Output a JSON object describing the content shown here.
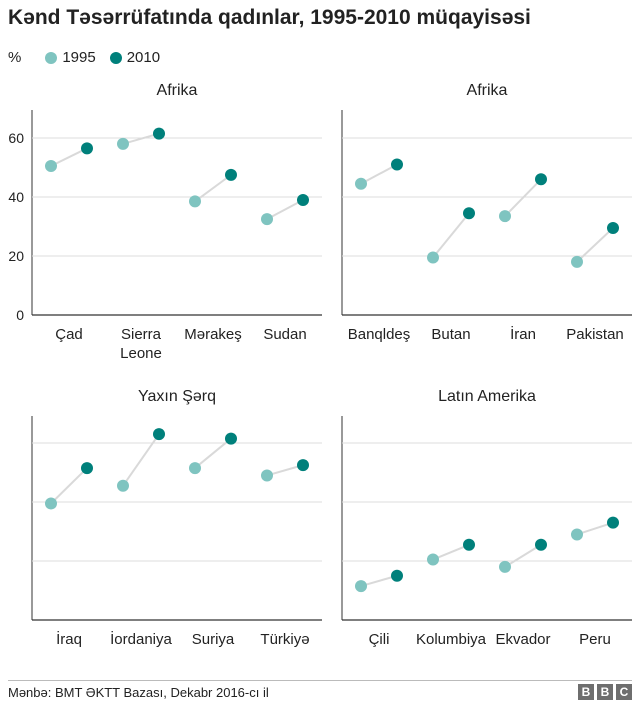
{
  "title": "Kənd Təsərrüfatında qadınlar, 1995-2010 müqayisəsi",
  "legend": {
    "unit": "%",
    "items": [
      {
        "label": "1995",
        "color": "#7fc4c0"
      },
      {
        "label": "2010",
        "color": "#00807b"
      }
    ]
  },
  "footer": {
    "source": "Mənbə: BMT ƏKTT  Bazası, Dekabr 2016-cı il",
    "logo_letters": [
      "B",
      "B",
      "C"
    ]
  },
  "colors": {
    "color_1995": "#7fc4c0",
    "color_2010": "#00807b",
    "connector": "#d9d9d9",
    "gridline": "#dddddd",
    "axis": "#333333"
  },
  "chart_data": [
    {
      "type": "scatter",
      "title": "Afrika",
      "ylim": [
        0,
        70
      ],
      "yticks": [
        0,
        20,
        40,
        60
      ],
      "show_y_tick_labels": true,
      "series": [
        {
          "name": "1995"
        },
        {
          "name": "2010"
        }
      ],
      "categories": [
        {
          "label": [
            "Çad"
          ],
          "v1995": 50.5,
          "v2010": 56.5
        },
        {
          "label": [
            "Sierra",
            "Leone"
          ],
          "v1995": 58,
          "v2010": 61.5
        },
        {
          "label": [
            "Mərakeş"
          ],
          "v1995": 38.5,
          "v2010": 47.5
        },
        {
          "label": [
            "Sudan"
          ],
          "v1995": 32.5,
          "v2010": 39
        }
      ]
    },
    {
      "type": "scatter",
      "title": "Afrika",
      "ylim": [
        0,
        70
      ],
      "yticks": [
        0,
        20,
        40,
        60
      ],
      "show_y_tick_labels": false,
      "series": [
        {
          "name": "1995"
        },
        {
          "name": "2010"
        }
      ],
      "categories": [
        {
          "label": [
            "Banqldeş"
          ],
          "v1995": 44.5,
          "v2010": 51
        },
        {
          "label": [
            "Butan"
          ],
          "v1995": 19.5,
          "v2010": 34.5
        },
        {
          "label": [
            "İran"
          ],
          "v1995": 33.5,
          "v2010": 46
        },
        {
          "label": [
            "Pakistan"
          ],
          "v1995": 18,
          "v2010": 29.5
        }
      ]
    },
    {
      "type": "scatter",
      "title": "Yaxın Şərq",
      "ylim": [
        0,
        70
      ],
      "yticks": [
        0,
        20,
        40,
        60
      ],
      "show_y_tick_labels": false,
      "series": [
        {
          "name": "1995"
        },
        {
          "name": "2010"
        }
      ],
      "categories": [
        {
          "label": [
            "İraq"
          ],
          "v1995": 39.5,
          "v2010": 51.5
        },
        {
          "label": [
            "İordaniya"
          ],
          "v1995": 45.5,
          "v2010": 63
        },
        {
          "label": [
            "Suriya"
          ],
          "v1995": 51.5,
          "v2010": 61.5
        },
        {
          "label": [
            "Türkiyə"
          ],
          "v1995": 49,
          "v2010": 52.5
        }
      ]
    },
    {
      "type": "scatter",
      "title": "Latın Amerika",
      "ylim": [
        0,
        70
      ],
      "yticks": [
        0,
        20,
        40,
        60
      ],
      "show_y_tick_labels": false,
      "series": [
        {
          "name": "1995"
        },
        {
          "name": "2010"
        }
      ],
      "categories": [
        {
          "label": [
            "Çili"
          ],
          "v1995": 11.5,
          "v2010": 15
        },
        {
          "label": [
            "Kolumbiya"
          ],
          "v1995": 20.5,
          "v2010": 25.5
        },
        {
          "label": [
            "Ekvador"
          ],
          "v1995": 18,
          "v2010": 25.5
        },
        {
          "label": [
            "Peru"
          ],
          "v1995": 29,
          "v2010": 33
        }
      ]
    }
  ]
}
